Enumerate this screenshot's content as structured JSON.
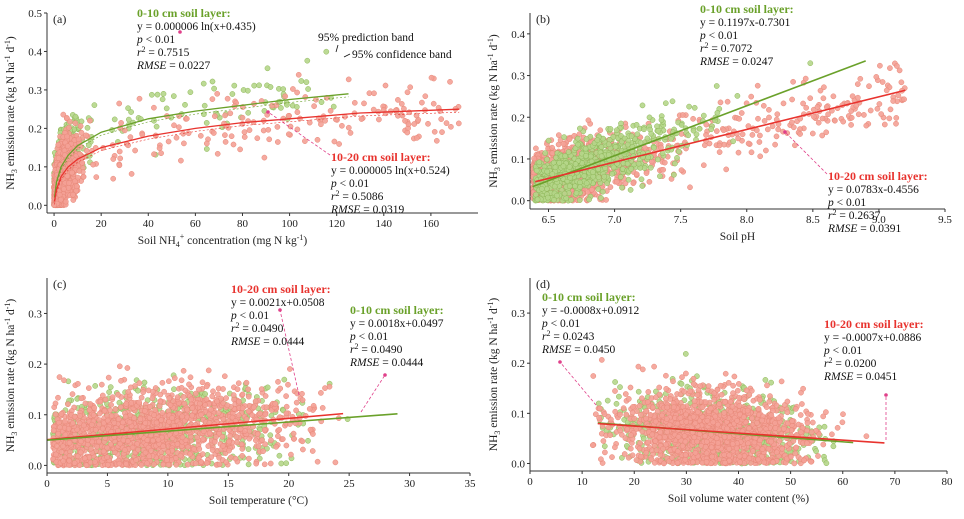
{
  "colors": {
    "layer_0_10": "#6aa12a",
    "layer_0_10_point": "#b5d68a",
    "layer_10_20": "#e8332e",
    "layer_10_20_point": "#f4a196",
    "pointer": "#e0408a"
  },
  "chart_data": [
    {
      "id": "a",
      "type": "scatter",
      "panel_label": "(a)",
      "xlabel": "Soil NH4+ concentration (mg N kg-1)",
      "xlabel_parts": [
        "Soil NH",
        "4",
        "+",
        " concentration (mg N kg",
        "-1",
        ")"
      ],
      "ylabel": "NH3 emission rate (kg N ha-1 d-1)",
      "xlim": [
        -3,
        180
      ],
      "ylim": [
        -0.02,
        0.5
      ],
      "xticks": [
        0,
        20,
        40,
        60,
        80,
        100,
        120,
        140,
        160
      ],
      "yticks": [
        0.0,
        0.1,
        0.2,
        0.3,
        0.4,
        0.5
      ],
      "ytick_labels": [
        "0.0",
        "0.1",
        "0.2",
        "0.3",
        "0.4",
        "0.5"
      ],
      "legend_notes": [
        "95% prediction band",
        "95% confidence band"
      ],
      "series": [
        {
          "name": "0-10 cm soil layer",
          "fit": "log",
          "a": 6e-06,
          "b": 0.435,
          "equation": "y = 0.000006 ln(x+0.435)",
          "p": "p < 0.01",
          "r2": "0.7515",
          "rmse": "0.0227",
          "x_range": [
            0,
            125
          ]
        },
        {
          "name": "10-20 cm soil layer",
          "fit": "log",
          "a": 5e-06,
          "b": 0.524,
          "equation": "y = 0.000005 ln(x+0.524)",
          "p": "p < 0.01",
          "r2": "0.5086",
          "rmse": "0.0319",
          "x_range": [
            0,
            172
          ]
        }
      ],
      "fit_curve_points": {
        "0-10 cm soil layer": [
          [
            0.2,
            0.02
          ],
          [
            1,
            0.06
          ],
          [
            3,
            0.1
          ],
          [
            6,
            0.13
          ],
          [
            10,
            0.155
          ],
          [
            20,
            0.19
          ],
          [
            40,
            0.225
          ],
          [
            60,
            0.245
          ],
          [
            80,
            0.26
          ],
          [
            100,
            0.275
          ],
          [
            125,
            0.29
          ]
        ],
        "10-20 cm soil layer": [
          [
            0.2,
            0.01
          ],
          [
            1,
            0.04
          ],
          [
            3,
            0.075
          ],
          [
            6,
            0.1
          ],
          [
            10,
            0.12
          ],
          [
            20,
            0.15
          ],
          [
            40,
            0.18
          ],
          [
            60,
            0.2
          ],
          [
            80,
            0.215
          ],
          [
            100,
            0.225
          ],
          [
            130,
            0.24
          ],
          [
            172,
            0.25
          ]
        ]
      }
    },
    {
      "id": "b",
      "type": "scatter",
      "panel_label": "(b)",
      "xlabel": "Soil pH",
      "ylabel": "NH3 emission rate (kg N ha-1 d-1)",
      "xlim": [
        6.36,
        9.5
      ],
      "ylim": [
        -0.02,
        0.45
      ],
      "xticks": [
        6.5,
        7.0,
        7.5,
        8.0,
        8.5,
        9.0,
        9.5
      ],
      "xtick_labels": [
        "6.5",
        "7.0",
        "7.5",
        "8.0",
        "8.5",
        "9.0",
        "9.5"
      ],
      "yticks": [
        0.0,
        0.1,
        0.2,
        0.3,
        0.4
      ],
      "ytick_labels": [
        "0.0",
        "0.1",
        "0.2",
        "0.3",
        "0.4"
      ],
      "series": [
        {
          "name": "0-10 cm soil layer",
          "fit": "linear",
          "slope": 0.1197,
          "intercept": -0.7301,
          "equation": "y = 0.1197x-0.7301",
          "p": "p < 0.01",
          "r2": "0.7072",
          "rmse": "0.0247",
          "x_range": [
            6.38,
            8.9
          ]
        },
        {
          "name": "10-20 cm soil layer",
          "fit": "linear",
          "slope": 0.0783,
          "intercept": -0.4556,
          "equation": "y = 0.0783x-0.4556",
          "p": "p < 0.01",
          "r2": "0.2637",
          "rmse": "0.0391",
          "x_range": [
            6.4,
            9.2
          ]
        }
      ]
    },
    {
      "id": "c",
      "type": "scatter",
      "panel_label": "(c)",
      "xlabel": "Soil temperature (°C)",
      "ylabel": "NH3 emission rate (kg N ha-1 d-1)",
      "xlim": [
        0,
        35
      ],
      "ylim": [
        -0.015,
        0.37
      ],
      "xticks": [
        0,
        5,
        10,
        15,
        20,
        25,
        30,
        35
      ],
      "yticks": [
        0.0,
        0.1,
        0.2,
        0.3
      ],
      "ytick_labels": [
        "0.0",
        "0.1",
        "0.2",
        "0.3"
      ],
      "series": [
        {
          "name": "10-20 cm soil layer",
          "fit": "linear",
          "slope": 0.0021,
          "intercept": 0.0508,
          "equation": "y = 0.0021x+0.0508",
          "p": "p < 0.01",
          "r2": "0.0490",
          "rmse": "0.0444",
          "x_range": [
            0,
            24.5
          ]
        },
        {
          "name": "0-10 cm soil layer",
          "fit": "linear",
          "slope": 0.0018,
          "intercept": 0.0497,
          "equation": "y = 0.0018x+0.0497",
          "p": "p < 0.01",
          "r2": "0.0490",
          "rmse": "0.0444",
          "x_range": [
            0,
            29
          ]
        }
      ]
    },
    {
      "id": "d",
      "type": "scatter",
      "panel_label": "(d)",
      "xlabel": "Soil volume water content (%)",
      "ylabel": "NH3 emission rate (kg N ha-1 d-1)",
      "xlim": [
        0,
        80
      ],
      "ylim": [
        -0.015,
        0.37
      ],
      "xticks": [
        0,
        10,
        20,
        30,
        40,
        50,
        60,
        70,
        80
      ],
      "yticks": [
        0.0,
        0.1,
        0.2,
        0.3
      ],
      "ytick_labels": [
        "0.0",
        "0.1",
        "0.2",
        "0.3"
      ],
      "series": [
        {
          "name": "0-10 cm soil layer",
          "fit": "linear",
          "slope": -0.0008,
          "intercept": 0.0912,
          "equation": "y = -0.0008x+0.0912",
          "p": "p < 0.01",
          "r2": "0.0243",
          "rmse": "0.0450",
          "x_range": [
            13,
            62
          ]
        },
        {
          "name": "10-20 cm soil layer",
          "fit": "linear",
          "slope": -0.0007,
          "intercept": 0.0886,
          "equation": "y = -0.0007x+0.0886",
          "p": "p < 0.01",
          "r2": "0.0200",
          "rmse": "0.0451",
          "x_range": [
            13,
            68
          ]
        }
      ]
    }
  ]
}
